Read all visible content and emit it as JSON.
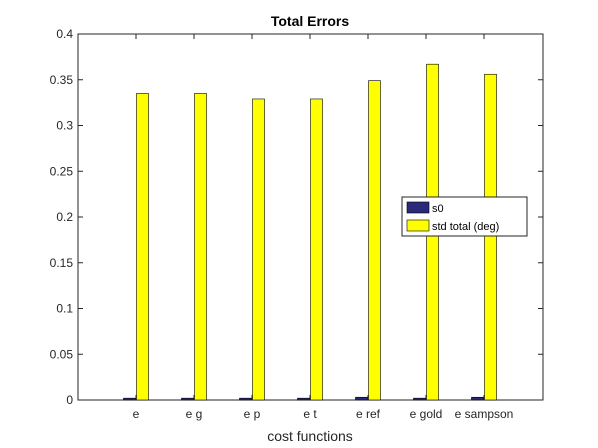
{
  "chart_data": {
    "type": "bar",
    "title": "Total Errors",
    "xlabel": "cost functions",
    "ylabel": "",
    "ylim": [
      0,
      0.4
    ],
    "yticks": [
      "0",
      "0.05",
      "0.1",
      "0.15",
      "0.2",
      "0.25",
      "0.3",
      "0.35",
      "0.4"
    ],
    "categories": [
      "e",
      "e g",
      "e p",
      "e t",
      "e ref",
      "e gold",
      "e sampson"
    ],
    "series": [
      {
        "name": "s0",
        "color": "#2b2a7a",
        "values": [
          0.002,
          0.002,
          0.002,
          0.002,
          0.003,
          0.002,
          0.003
        ]
      },
      {
        "name": "std total (deg)",
        "color": "#ffff00",
        "values": [
          0.335,
          0.335,
          0.329,
          0.329,
          0.349,
          0.367,
          0.356
        ]
      }
    ],
    "grid": false,
    "legend_position": "right"
  }
}
